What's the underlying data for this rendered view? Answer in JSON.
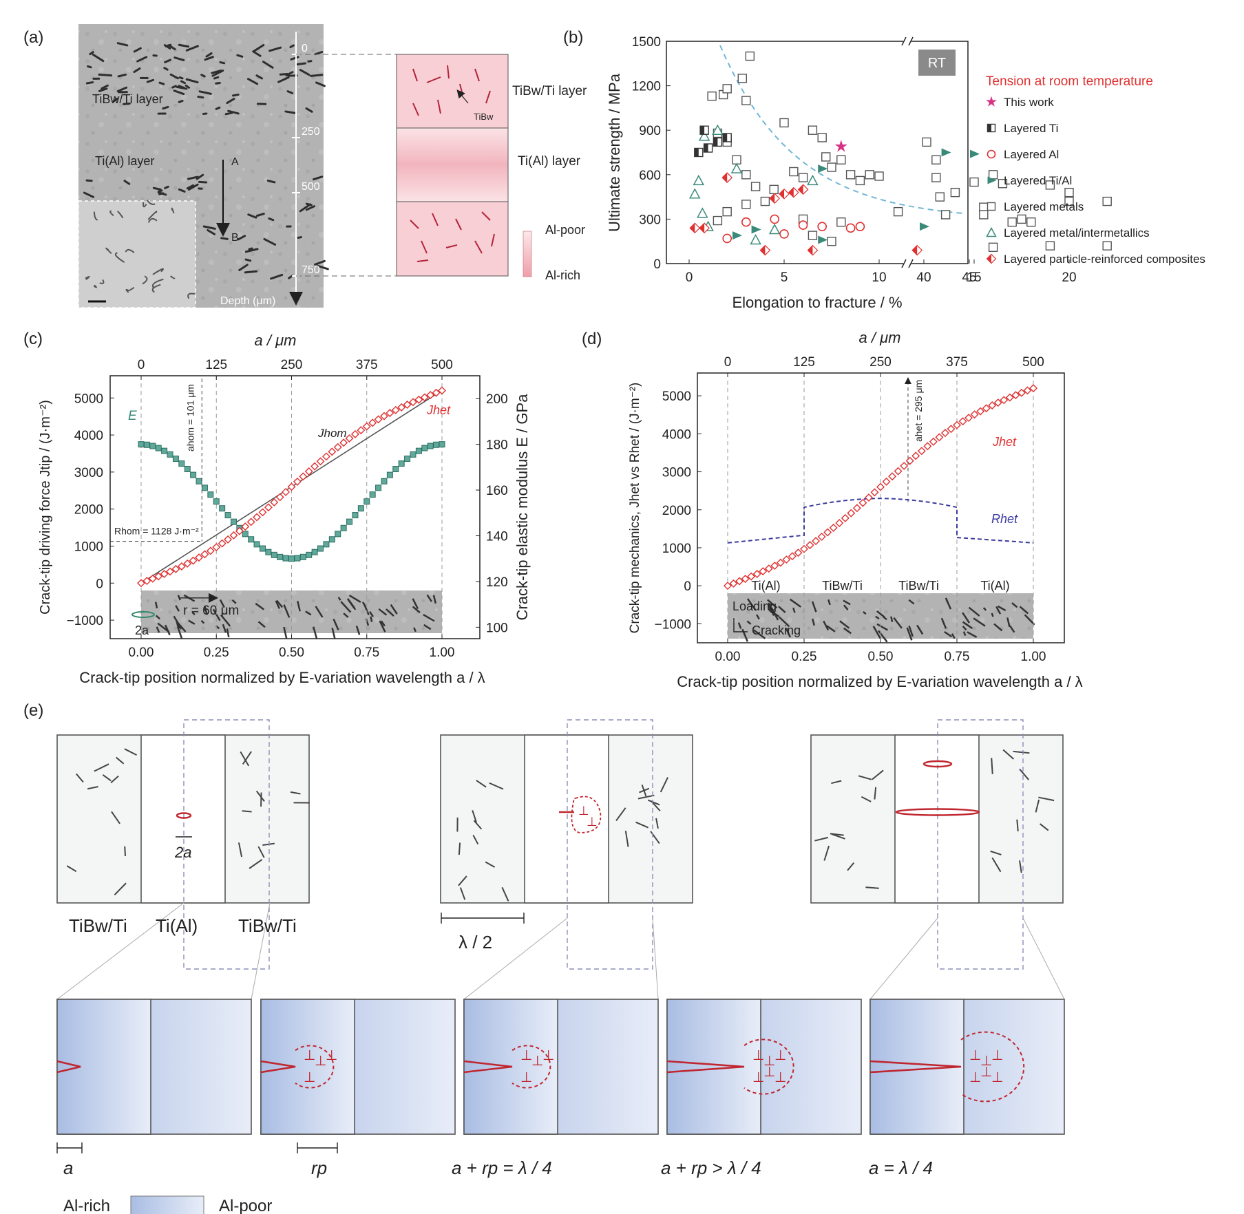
{
  "panel_labels": {
    "a": "(a)",
    "b": "(b)",
    "c": "(c)",
    "d": "(d)",
    "e": "(e)"
  },
  "panel_a": {
    "micrograph_labels": {
      "tib_layer": "TiBw/Ti layer",
      "tial_layer": "Ti(Al) layer",
      "point_a": "A",
      "point_b": "B"
    },
    "depth_ticks": [
      "0",
      "250",
      "500",
      "750"
    ],
    "depth_axis_label": "Depth (μm)",
    "schematic_labels": {
      "tib_layer": "TiBw/Ti layer",
      "tial_layer": "Ti(Al) layer",
      "tibw": "TiBw"
    },
    "scale_bar": {
      "top": "Al-poor",
      "bottom": "Al-rich"
    }
  },
  "chart_data": [
    {
      "panel": "b",
      "type": "scatter",
      "xlabel": "Elongation to fracture / %",
      "ylabel": "Ultimate strength / MPa",
      "x_ticks": [
        "0",
        "5",
        "10",
        "15",
        "20",
        "40",
        "45"
      ],
      "y_ticks": [
        "0",
        "300",
        "600",
        "900",
        "1200",
        "1500"
      ],
      "ylim": [
        0,
        1500
      ],
      "badge": "RT",
      "legend_title": "Tension at room temperature",
      "legend_position": "right",
      "series": [
        {
          "name": "This work",
          "marker": "star",
          "color": "#d63384",
          "points": [
            [
              8,
              790
            ]
          ]
        },
        {
          "name": "Layered Ti",
          "marker": "half-square",
          "color": "#333333",
          "points": [
            [
              0.5,
              750
            ],
            [
              1,
              780
            ],
            [
              1.5,
              820
            ],
            [
              2,
              850
            ],
            [
              0.8,
              900
            ]
          ]
        },
        {
          "name": "Layered Al",
          "marker": "circle",
          "color": "#e03030",
          "points": [
            [
              2,
              170
            ],
            [
              3,
              280
            ],
            [
              4.5,
              300
            ],
            [
              6,
              260
            ],
            [
              7,
              250
            ],
            [
              8.5,
              240
            ],
            [
              9,
              250
            ],
            [
              5,
              200
            ]
          ]
        },
        {
          "name": "Layered Ti/Al",
          "marker": "tri-right",
          "color": "#3a8a7a",
          "points": [
            [
              2.5,
              190
            ],
            [
              3.5,
              230
            ],
            [
              7,
              160
            ],
            [
              7,
              640
            ],
            [
              13.5,
              750
            ],
            [
              15,
              740
            ],
            [
              40,
              250
            ]
          ]
        },
        {
          "name": "Layered metals",
          "marker": "square",
          "color": "#555555",
          "points": [
            [
              1.2,
              1130
            ],
            [
              1.8,
              1140
            ],
            [
              2,
              1180
            ],
            [
              2.8,
              1250
            ],
            [
              3,
              1100
            ],
            [
              3.2,
              1400
            ],
            [
              1.5,
              880
            ],
            [
              2,
              820
            ],
            [
              2.5,
              700
            ],
            [
              3,
              600
            ],
            [
              3.5,
              520
            ],
            [
              5,
              950
            ],
            [
              5.5,
              620
            ],
            [
              6,
              580
            ],
            [
              6.5,
              900
            ],
            [
              7,
              850
            ],
            [
              7.2,
              720
            ],
            [
              7.5,
              650
            ],
            [
              8,
              700
            ],
            [
              8.5,
              600
            ],
            [
              9,
              560
            ],
            [
              9.5,
              600
            ],
            [
              10,
              590
            ],
            [
              11,
              350
            ],
            [
              12.5,
              820
            ],
            [
              13,
              700
            ],
            [
              13,
              580
            ],
            [
              13.2,
              450
            ],
            [
              13.5,
              330
            ],
            [
              14,
              480
            ],
            [
              15,
              550
            ],
            [
              15.5,
              380
            ],
            [
              15.5,
              330
            ],
            [
              16,
              600
            ],
            [
              16.5,
              540
            ],
            [
              17,
              280
            ],
            [
              17.5,
              300
            ],
            [
              18,
              280
            ],
            [
              19,
              530
            ],
            [
              20,
              480
            ],
            [
              20,
              420
            ],
            [
              22,
              420
            ],
            [
              23.5,
              500
            ],
            [
              2,
              350
            ],
            [
              3,
              400
            ],
            [
              4,
              420
            ],
            [
              6,
              300
            ],
            [
              6.5,
              190
            ],
            [
              7.5,
              150
            ],
            [
              8,
              280
            ],
            [
              16,
              110
            ],
            [
              19,
              120
            ],
            [
              22,
              120
            ],
            [
              1.5,
              290
            ]
          ]
        },
        {
          "name": "Layered metal/intermetallics",
          "marker": "triangle",
          "color": "#3a8a7a",
          "points": [
            [
              0.3,
              470
            ],
            [
              0.5,
              560
            ],
            [
              0.7,
              340
            ],
            [
              0.8,
              860
            ],
            [
              1.5,
              900
            ],
            [
              2.5,
              640
            ],
            [
              3.5,
              160
            ],
            [
              4.5,
              230
            ],
            [
              6.5,
              560
            ],
            [
              1,
              250
            ]
          ]
        },
        {
          "name": "Layered particle-reinforced composites",
          "marker": "diamond",
          "color": "#e03030",
          "points": [
            [
              0.3,
              240
            ],
            [
              0.8,
              240
            ],
            [
              2,
              580
            ],
            [
              4,
              90
            ],
            [
              4.5,
              440
            ],
            [
              5,
              470
            ],
            [
              5.5,
              480
            ],
            [
              6,
              500
            ],
            [
              6.5,
              90
            ],
            [
              12,
              90
            ]
          ]
        }
      ]
    },
    {
      "panel": "c",
      "type": "line",
      "xlabel": "Crack-tip position normalized by E-variation wavelength a / λ",
      "x2label": "a / μm",
      "ylabel": "Crack-tip driving force Jtip / (J·m⁻²)",
      "y2label": "Crack-tip elastic modulus E / GPa",
      "x_ticks": [
        "0.00",
        "0.25",
        "0.50",
        "0.75",
        "1.00"
      ],
      "x2_ticks": [
        "0",
        "125",
        "250",
        "375",
        "500"
      ],
      "y_ticks": [
        "−1000",
        "0",
        "1000",
        "2000",
        "3000",
        "4000",
        "5000"
      ],
      "y2_ticks": [
        "100",
        "120",
        "140",
        "160",
        "180",
        "200"
      ],
      "ylim": [
        -1500,
        5600
      ],
      "y2lim": [
        95,
        210
      ],
      "series": [
        {
          "name": "Jhet",
          "axis": "left",
          "color": "#e03030",
          "marker": "diamond",
          "x": [
            0,
            1
          ],
          "model": "Jhet",
          "note": "rises from 0 to 5200"
        },
        {
          "name": "E",
          "axis": "right",
          "color": "#3a8a7a",
          "marker": "square",
          "x": [
            0,
            1
          ],
          "model": "E",
          "note": "180 at ends, 130 at a/λ=0.5"
        },
        {
          "name": "Jhom",
          "axis": "left",
          "color": "#555555",
          "marker": "none",
          "x": [
            0,
            1
          ],
          "y": [
            0,
            5200
          ]
        }
      ],
      "annotations": {
        "a_hom": "ahom = 101 μm",
        "r_hom": "Rhom = 1128 J·m⁻²",
        "r_label": "r = 60 μm",
        "crack": "2a",
        "e_label": "E",
        "jhet_label": "Jhet",
        "jhom_label": "Jhom"
      }
    },
    {
      "panel": "d",
      "type": "line",
      "xlabel": "Crack-tip position normalized by E-variation wavelength a / λ",
      "x2label": "a / μm",
      "ylabel": "Crack-tip mechanics, Jhet vs Rhet / (J·m⁻²)",
      "x_ticks": [
        "0.00",
        "0.25",
        "0.50",
        "0.75",
        "1.00"
      ],
      "x2_ticks": [
        "0",
        "125",
        "250",
        "375",
        "500"
      ],
      "y_ticks": [
        "−1000",
        "0",
        "1000",
        "2000",
        "3000",
        "4000",
        "5000"
      ],
      "ylim": [
        -1500,
        5600
      ],
      "series": [
        {
          "name": "Jhet",
          "color": "#e03030",
          "marker": "diamond",
          "model": "Jhet"
        },
        {
          "name": "Rhet",
          "color": "#3a3aa0",
          "marker": "none",
          "model": "Rhet",
          "note": "1130 in Ti(Al), 1950-2300 in TiBw/Ti"
        }
      ],
      "annotations": {
        "a_het": "ahet = 295 μm",
        "jhet_label": "Jhet",
        "rhet_label": "Rhet",
        "region_labels": [
          "Ti(Al)",
          "TiBw/Ti",
          "TiBw/Ti",
          "Ti(Al)"
        ],
        "loading": "Loading",
        "cracking": "Cracking"
      }
    }
  ],
  "panel_e": {
    "layer_labels": [
      "TiBw/Ti",
      "Ti(Al)",
      "TiBw/Ti"
    ],
    "crack_label": "2a",
    "lambda_label": "λ / 2",
    "zoom_labels": [
      "a",
      "rp",
      "a + rp = λ / 4",
      "a + rp > λ / 4",
      "a = λ / 4"
    ],
    "gradient_legend": {
      "left": "Al-rich",
      "right": "Al-poor"
    }
  }
}
